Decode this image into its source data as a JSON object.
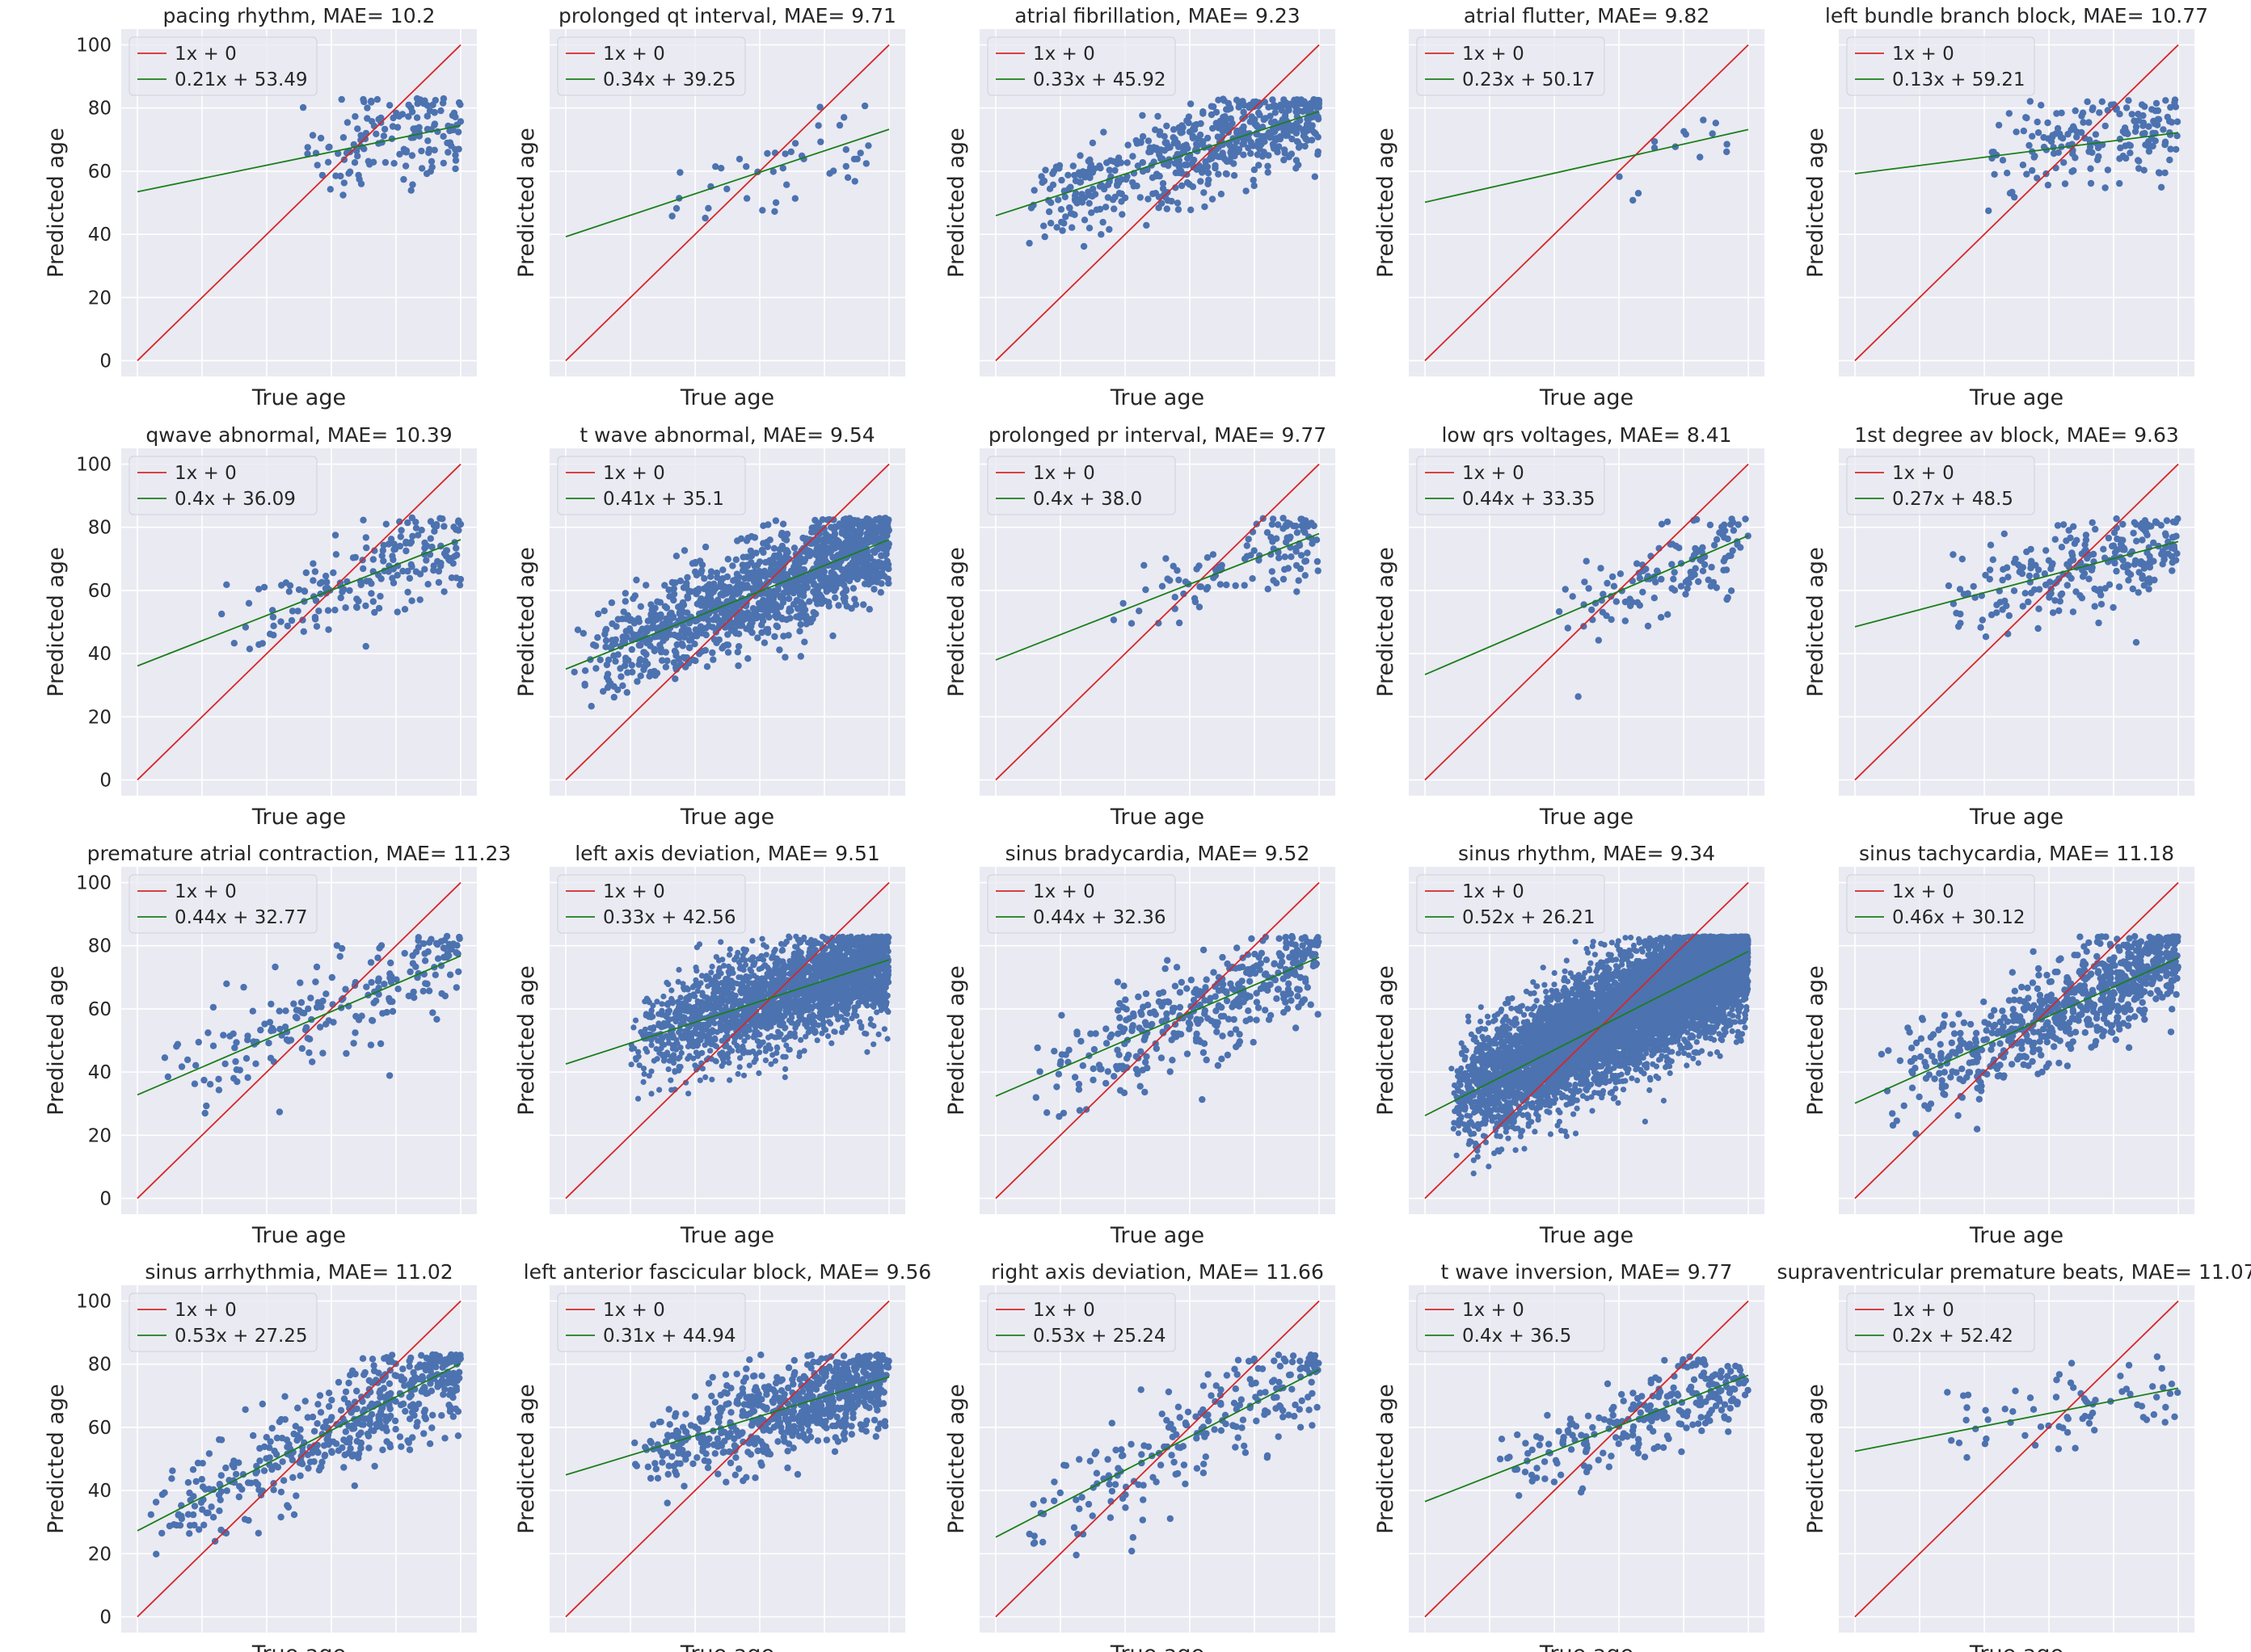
{
  "figure": {
    "xlabel": "True age",
    "ylabel": "Predicted age",
    "yticks": [
      0,
      20,
      40,
      60,
      80,
      100
    ],
    "colors": {
      "background": "#eaeaf2",
      "grid": "#ffffff",
      "identity": "#d62728",
      "fit": "#1a7f1a",
      "points": "#4c72b0"
    }
  },
  "chart_data": [
    {
      "type": "scatter",
      "title": "pacing rhythm, MAE= 10.2",
      "legend": [
        "1x + 0",
        "0.21x + 53.49"
      ],
      "slope": 0.21,
      "intercept": 53.49,
      "n": 150,
      "xrange": [
        48,
        100
      ],
      "noise": 8,
      "seed": 1
    },
    {
      "type": "scatter",
      "title": "prolonged qt interval, MAE= 9.71",
      "legend": [
        "1x + 0",
        "0.34x + 39.25"
      ],
      "slope": 0.34,
      "intercept": 39.25,
      "n": 45,
      "xrange": [
        22,
        95
      ],
      "noise": 7,
      "seed": 2
    },
    {
      "type": "scatter",
      "title": "atrial fibrillation, MAE= 9.23",
      "legend": [
        "1x + 0",
        "0.33x + 45.92"
      ],
      "slope": 0.33,
      "intercept": 45.92,
      "n": 600,
      "xrange": [
        8,
        100
      ],
      "noise": 7,
      "seed": 3
    },
    {
      "type": "scatter",
      "title": "atrial flutter, MAE= 9.82",
      "legend": [
        "1x + 0",
        "0.23x + 50.17"
      ],
      "slope": 0.23,
      "intercept": 50.17,
      "n": 14,
      "xrange": [
        55,
        95
      ],
      "noise": 6,
      "seed": 4
    },
    {
      "type": "scatter",
      "title": "left bundle branch block, MAE= 10.77",
      "legend": [
        "1x + 0",
        "0.13x + 59.21"
      ],
      "slope": 0.13,
      "intercept": 59.21,
      "n": 180,
      "xrange": [
        40,
        100
      ],
      "noise": 7,
      "seed": 5
    },
    {
      "type": "scatter",
      "title": "qwave abnormal, MAE= 10.39",
      "legend": [
        "1x + 0",
        "0.4x + 36.09"
      ],
      "slope": 0.4,
      "intercept": 36.09,
      "n": 190,
      "xrange": [
        22,
        100
      ],
      "noise": 8,
      "seed": 6
    },
    {
      "type": "scatter",
      "title": "t wave abnormal, MAE= 9.54",
      "legend": [
        "1x + 0",
        "0.41x + 35.1"
      ],
      "slope": 0.41,
      "intercept": 35.1,
      "n": 1300,
      "xrange": [
        2,
        100
      ],
      "noise": 8,
      "seed": 7
    },
    {
      "type": "scatter",
      "title": "prolonged pr interval, MAE= 9.77",
      "legend": [
        "1x + 0",
        "0.4x + 38.0"
      ],
      "slope": 0.4,
      "intercept": 38.0,
      "n": 120,
      "xrange": [
        35,
        100
      ],
      "noise": 6,
      "seed": 8
    },
    {
      "type": "scatter",
      "title": "low qrs voltages, MAE= 8.41",
      "legend": [
        "1x + 0",
        "0.44x + 33.35"
      ],
      "slope": 0.44,
      "intercept": 33.35,
      "n": 130,
      "xrange": [
        40,
        100
      ],
      "noise": 7,
      "seed": 9
    },
    {
      "type": "scatter",
      "title": "1st degree av block, MAE= 9.63",
      "legend": [
        "1x + 0",
        "0.27x + 48.5"
      ],
      "slope": 0.27,
      "intercept": 48.5,
      "n": 260,
      "xrange": [
        25,
        100
      ],
      "noise": 7,
      "seed": 10
    },
    {
      "type": "scatter",
      "title": "premature atrial contraction, MAE= 11.23",
      "legend": [
        "1x + 0",
        "0.44x + 32.77"
      ],
      "slope": 0.44,
      "intercept": 32.77,
      "n": 200,
      "xrange": [
        5,
        100
      ],
      "noise": 8,
      "seed": 11
    },
    {
      "type": "scatter",
      "title": "left axis deviation, MAE= 9.51",
      "legend": [
        "1x + 0",
        "0.33x + 42.56"
      ],
      "slope": 0.33,
      "intercept": 42.56,
      "n": 2500,
      "xrange": [
        20,
        100
      ],
      "noise": 8,
      "seed": 12
    },
    {
      "type": "scatter",
      "title": "sinus bradycardia, MAE= 9.52",
      "legend": [
        "1x + 0",
        "0.44x + 32.36"
      ],
      "slope": 0.44,
      "intercept": 32.36,
      "n": 400,
      "xrange": [
        10,
        100
      ],
      "noise": 8,
      "seed": 13
    },
    {
      "type": "scatter",
      "title": "sinus rhythm, MAE= 9.34",
      "legend": [
        "1x + 0",
        "0.52x + 26.21"
      ],
      "slope": 0.52,
      "intercept": 26.21,
      "n": 8000,
      "xrange": [
        8,
        100
      ],
      "noise": 9,
      "seed": 14
    },
    {
      "type": "scatter",
      "title": "sinus tachycardia, MAE= 11.18",
      "legend": [
        "1x + 0",
        "0.46x + 30.12"
      ],
      "slope": 0.46,
      "intercept": 30.12,
      "n": 750,
      "xrange": [
        8,
        100
      ],
      "noise": 8,
      "seed": 15
    },
    {
      "type": "scatter",
      "title": "sinus arrhythmia, MAE= 11.02",
      "legend": [
        "1x + 0",
        "0.53x + 27.25"
      ],
      "slope": 0.53,
      "intercept": 27.25,
      "n": 500,
      "xrange": [
        2,
        100
      ],
      "noise": 8,
      "seed": 16
    },
    {
      "type": "scatter",
      "title": "left anterior fascicular block, MAE= 9.56",
      "legend": [
        "1x + 0",
        "0.31x + 44.94"
      ],
      "slope": 0.31,
      "intercept": 44.94,
      "n": 700,
      "xrange": [
        20,
        100
      ],
      "noise": 7,
      "seed": 17
    },
    {
      "type": "scatter",
      "title": "right axis deviation, MAE= 11.66",
      "legend": [
        "1x + 0",
        "0.53x + 25.24"
      ],
      "slope": 0.53,
      "intercept": 25.24,
      "n": 220,
      "xrange": [
        8,
        100
      ],
      "noise": 9,
      "seed": 18
    },
    {
      "type": "scatter",
      "title": "t wave inversion, MAE= 9.77",
      "legend": [
        "1x + 0",
        "0.4x + 36.5"
      ],
      "slope": 0.4,
      "intercept": 36.5,
      "n": 260,
      "xrange": [
        20,
        100
      ],
      "noise": 7,
      "seed": 19
    },
    {
      "type": "scatter",
      "title": "supraventricular premature beats, MAE= 11.07",
      "legend": [
        "1x + 0",
        "0.2x + 52.42"
      ],
      "slope": 0.2,
      "intercept": 52.42,
      "n": 70,
      "xrange": [
        25,
        100
      ],
      "noise": 7,
      "seed": 20
    }
  ]
}
